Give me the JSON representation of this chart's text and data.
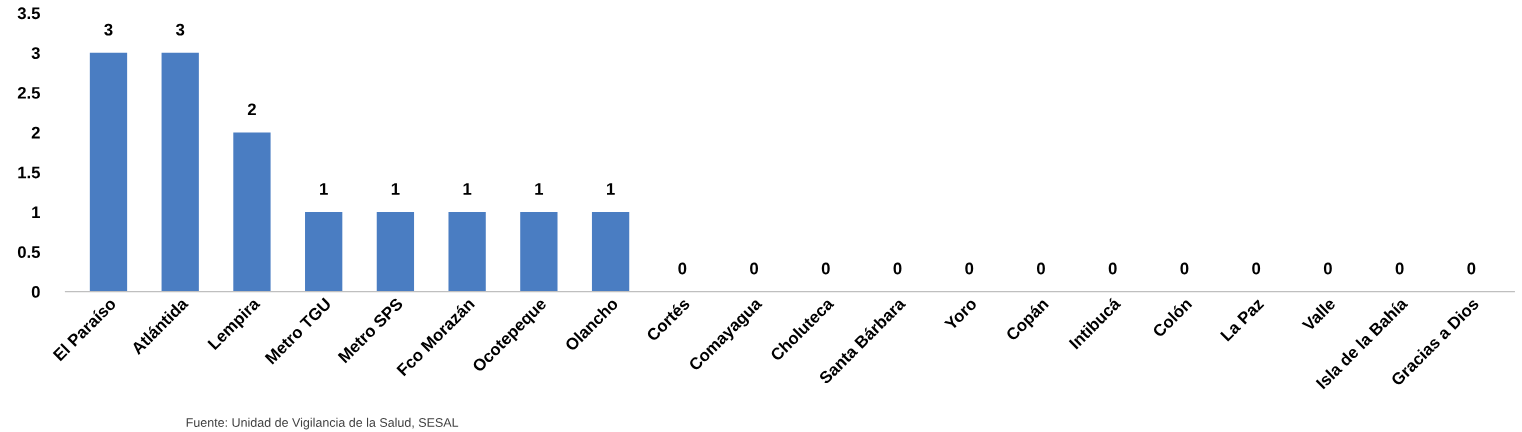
{
  "chart_data": {
    "type": "bar",
    "categories": [
      "El Paraíso",
      "Atlántida",
      "Lempira",
      "Metro TGU",
      "Metro SPS",
      "Fco Morazán",
      "Ocotepeque",
      "Olancho",
      "Cortés",
      "Comayagua",
      "Choluteca",
      "Santa Bárbara",
      "Yoro",
      "Copán",
      "Intibucá",
      "Colón",
      "La Paz",
      "Valle",
      "Isla de la Bahía",
      "Gracias a Dios"
    ],
    "values": [
      3,
      3,
      2,
      1,
      1,
      1,
      1,
      1,
      0,
      0,
      0,
      0,
      0,
      0,
      0,
      0,
      0,
      0,
      0,
      0
    ],
    "color": "#4a7dc2",
    "ylim": [
      0,
      3.5
    ],
    "yticks": [
      0,
      0.5,
      1,
      1.5,
      2,
      2.5,
      3,
      3.5
    ],
    "data_labels": true,
    "grid": false,
    "legend": false,
    "annotations": [
      "Fuente: Unidad de Vigilancia de la Salud, SESAL"
    ]
  }
}
